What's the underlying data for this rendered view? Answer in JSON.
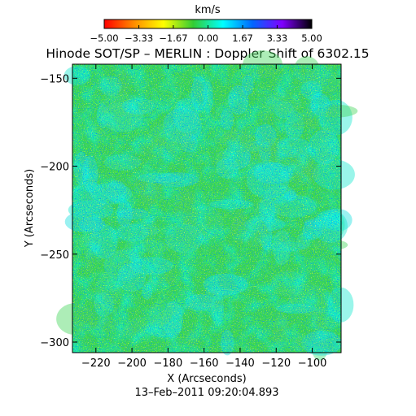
{
  "chart_data": {
    "type": "heatmap",
    "title": "Hinode SOT/SP – MERLIN : Doppler Shift of 6302.15",
    "colorbar": {
      "label": "km/s",
      "tick_labels": [
        "−5.00",
        "−3.33",
        "−1.67",
        "0.00",
        "1.67",
        "3.33",
        "5.00"
      ],
      "ticks": [
        -5.0,
        -3.33,
        -1.67,
        0.0,
        1.67,
        3.33,
        5.0
      ],
      "range": [
        -5.0,
        5.0
      ],
      "colors": [
        "#ff0000",
        "#ff8c00",
        "#ffff00",
        "#33cc33",
        "#00ffff",
        "#0066ff",
        "#8000ff",
        "#000000"
      ]
    },
    "xlabel": "X (Arcseconds)",
    "ylabel": "Y (Arcseconds)",
    "x_ticks": [
      -220,
      -200,
      -180,
      -160,
      -140,
      -120,
      -100
    ],
    "x_tick_labels": [
      "−220",
      "−200",
      "−180",
      "−160",
      "−140",
      "−120",
      "−100"
    ],
    "y_ticks": [
      -150,
      -200,
      -250,
      -300
    ],
    "y_tick_labels": [
      "−150",
      "−200",
      "−250",
      "−300"
    ],
    "xlim": [
      -233,
      -84
    ],
    "ylim": [
      -306,
      -142
    ],
    "grid": false,
    "dominant_value_range": [
      -1.0,
      1.5
    ],
    "timestamp": "13–Feb–2011 09:20:04.893"
  }
}
